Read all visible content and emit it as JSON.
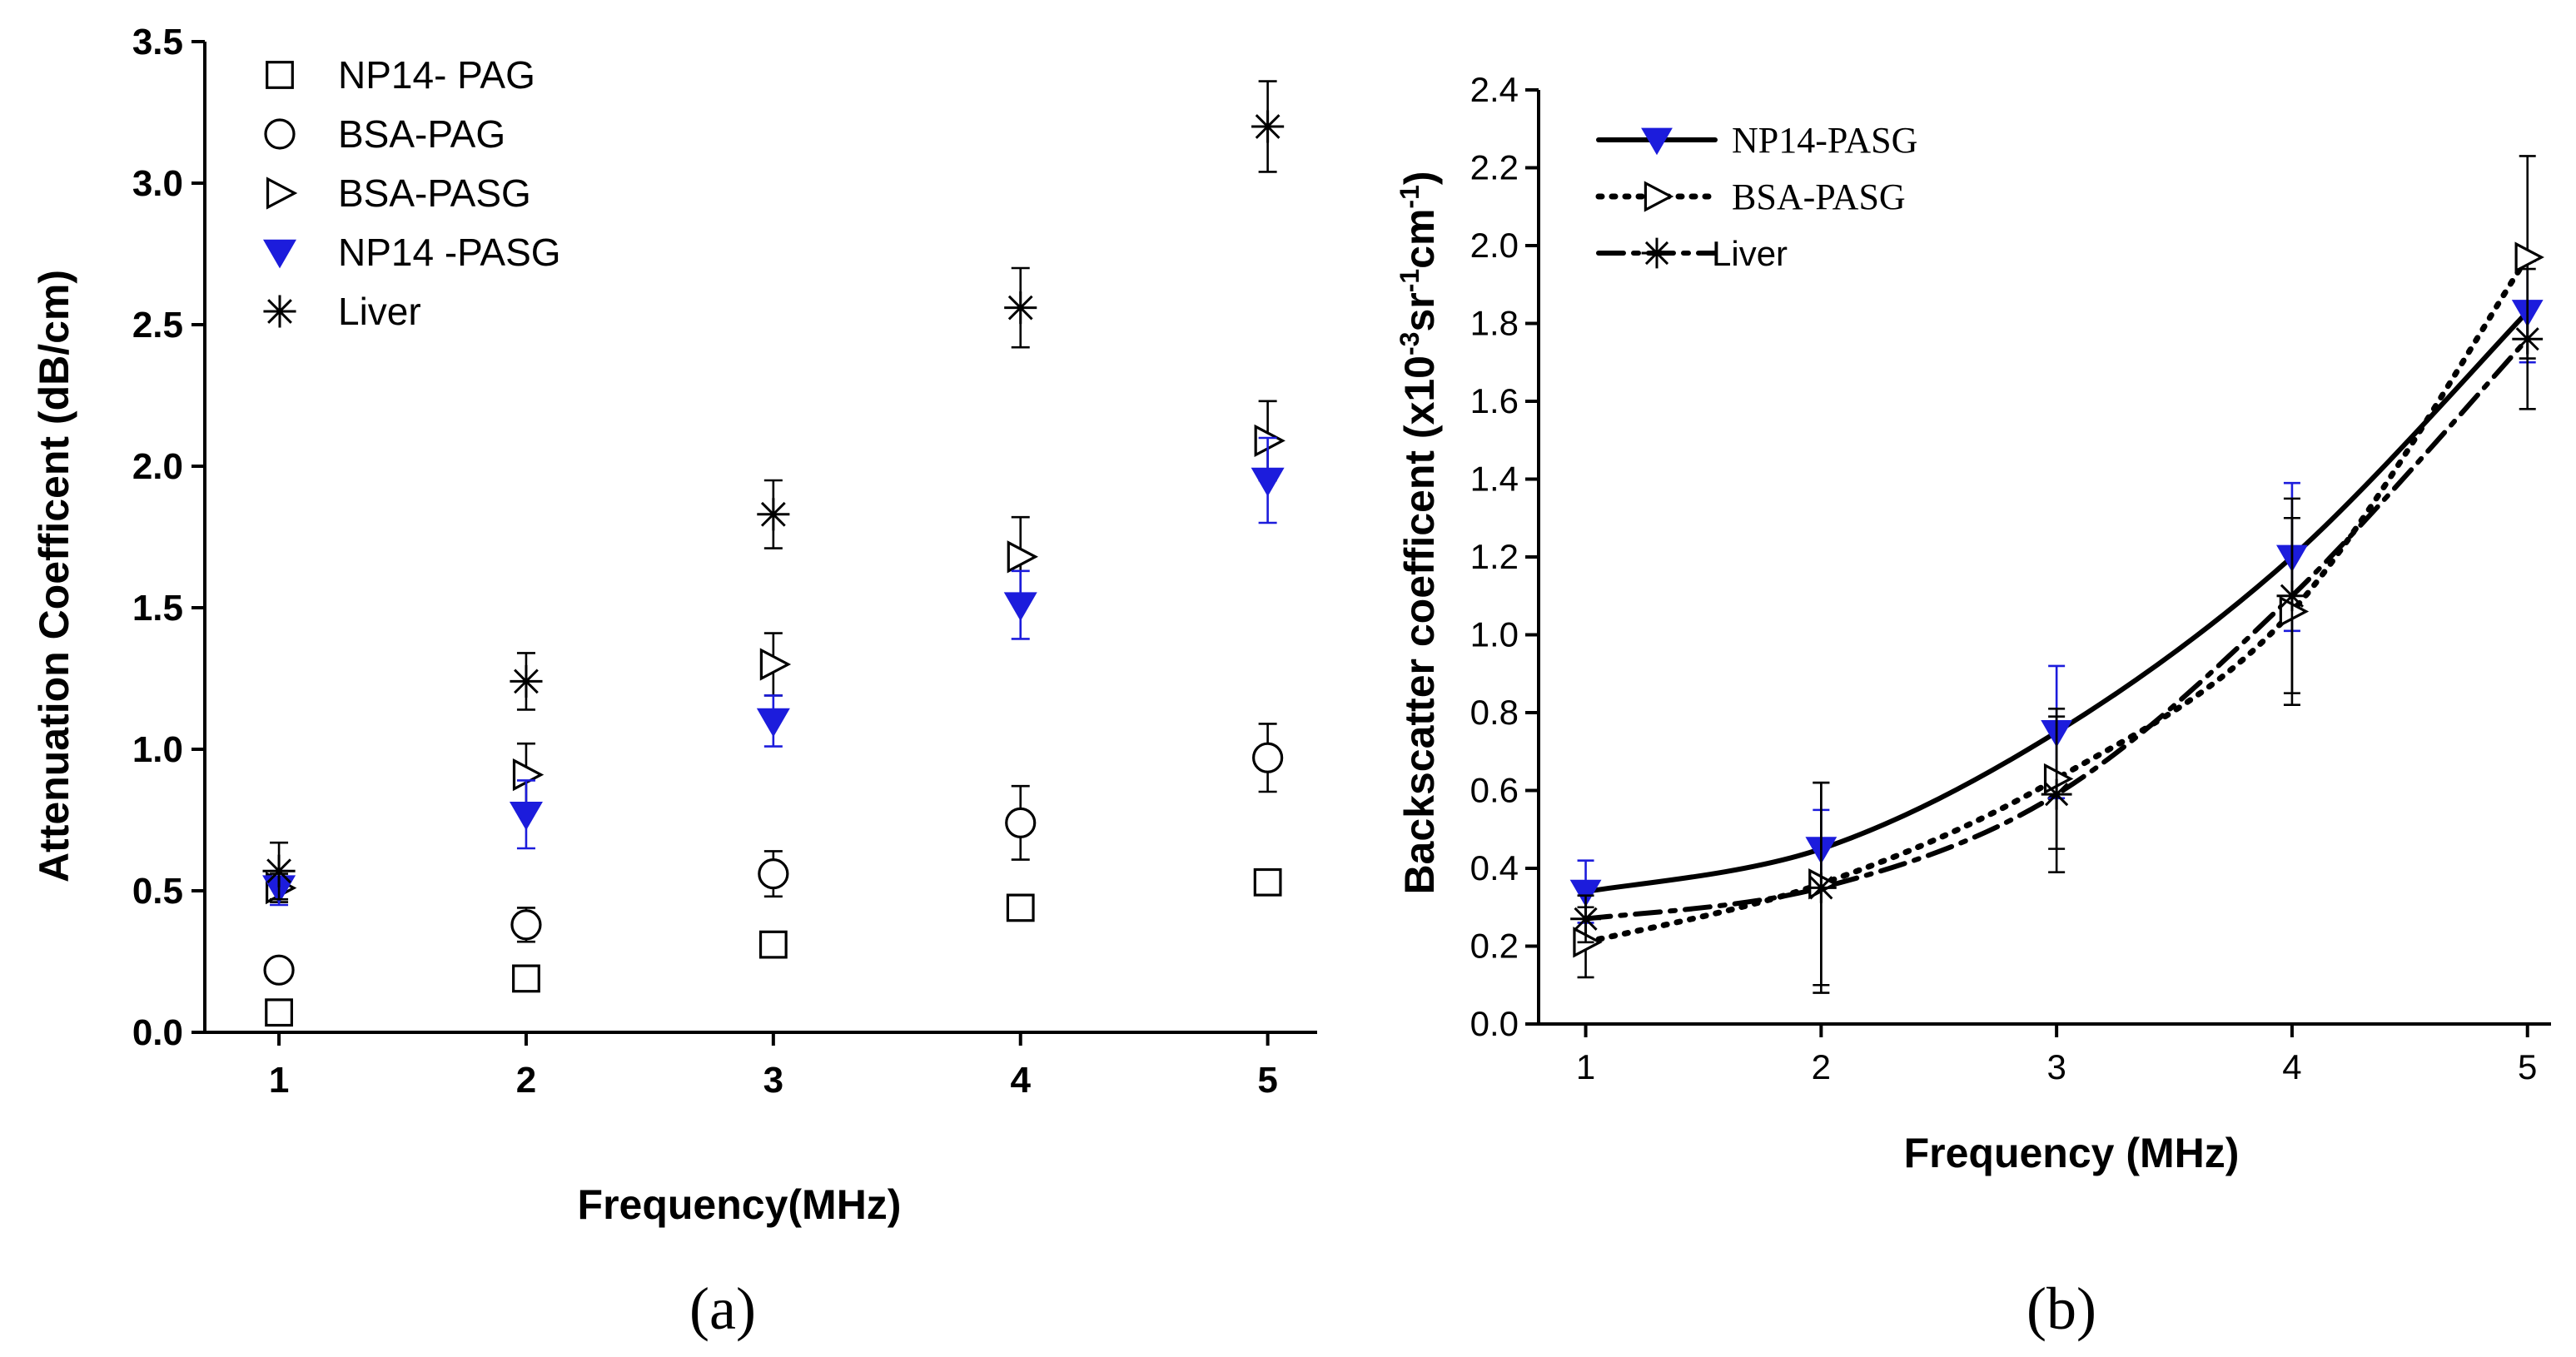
{
  "chart_data": [
    {
      "type": "scatter",
      "panel_label": "(a)",
      "xlabel": "Frequency(MHz)",
      "ylabel": "Attenuation Coefficent (dB/cm)",
      "xlim": [
        0.7,
        5.2
      ],
      "ylim": [
        0,
        3.5
      ],
      "x_ticks": [
        "1",
        "2",
        "3",
        "4",
        "5"
      ],
      "y_ticks": [
        "0.0",
        "0.5",
        "1.0",
        "1.5",
        "2.0",
        "2.5",
        "3.0",
        "3.5"
      ],
      "legend_position": "top-left",
      "x": [
        1,
        2,
        3,
        4,
        5
      ],
      "series": [
        {
          "name": "NP14- PAG",
          "marker": "square-open",
          "color": "#000000",
          "values": [
            0.07,
            0.19,
            0.31,
            0.44,
            0.53
          ],
          "errors": [
            0.03,
            0.03,
            0.03,
            0.03,
            0.03
          ]
        },
        {
          "name": "BSA-PAG",
          "marker": "circle-open",
          "color": "#000000",
          "values": [
            0.22,
            0.38,
            0.56,
            0.74,
            0.97
          ],
          "errors": [
            0.04,
            0.06,
            0.08,
            0.13,
            0.12
          ]
        },
        {
          "name": "BSA-PASG",
          "marker": "triangle-right-open",
          "color": "#000000",
          "values": [
            0.51,
            0.91,
            1.3,
            1.68,
            2.09
          ],
          "errors": [
            0.05,
            0.11,
            0.11,
            0.14,
            0.14
          ]
        },
        {
          "name": "NP14 -PASG",
          "marker": "triangle-down-filled",
          "color": "#1c1cdc",
          "values": [
            0.51,
            0.77,
            1.1,
            1.51,
            1.95
          ],
          "errors": [
            0.06,
            0.12,
            0.09,
            0.12,
            0.15
          ]
        },
        {
          "name": "Liver",
          "marker": "asterisk",
          "color": "#000000",
          "values": [
            0.57,
            1.24,
            1.83,
            2.56,
            3.2
          ],
          "errors": [
            0.1,
            0.1,
            0.12,
            0.14,
            0.16
          ]
        }
      ]
    },
    {
      "type": "line",
      "panel_label": "(b)",
      "xlabel": "Frequency (MHz)",
      "ylabel": "Backscatter coefficent (x10",
      "ylabel_sup1": "-3",
      "ylabel_mid": "sr",
      "ylabel_sup2": "-1",
      "ylabel_mid2": "cm",
      "ylabel_sup3": "-1",
      "ylabel_end": ")",
      "xlim": [
        0.8,
        5.1
      ],
      "ylim": [
        0,
        2.4
      ],
      "x_ticks": [
        "1",
        "2",
        "3",
        "4",
        "5"
      ],
      "y_ticks": [
        "0.0",
        "0.2",
        "0.4",
        "0.6",
        "0.8",
        "1.0",
        "1.2",
        "1.4",
        "1.6",
        "1.8",
        "2.0",
        "2.2",
        "2.4"
      ],
      "legend_position": "top-left",
      "x": [
        1,
        2,
        3,
        4,
        5
      ],
      "series": [
        {
          "name": "NP14-PASG",
          "marker": "triangle-down-filled",
          "line": "solid",
          "color": "#000000",
          "marker_color": "#1c1cdc",
          "values": [
            0.34,
            0.45,
            0.75,
            1.2,
            1.83
          ],
          "errors": [
            0.08,
            0.1,
            0.17,
            0.19,
            0.13
          ]
        },
        {
          "name": "BSA-PASG",
          "marker": "triangle-right-open",
          "line": "dotted",
          "color": "#000000",
          "values": [
            0.21,
            0.36,
            0.63,
            1.06,
            1.97
          ],
          "errors": [
            0.09,
            0.26,
            0.18,
            0.24,
            0.26
          ]
        },
        {
          "name": "Liver",
          "marker": "asterisk",
          "line": "dashdot",
          "color": "#000000",
          "values": [
            0.27,
            0.35,
            0.59,
            1.1,
            1.76
          ],
          "errors": [
            0.06,
            0.27,
            0.2,
            0.25,
            0.18
          ]
        }
      ]
    }
  ]
}
